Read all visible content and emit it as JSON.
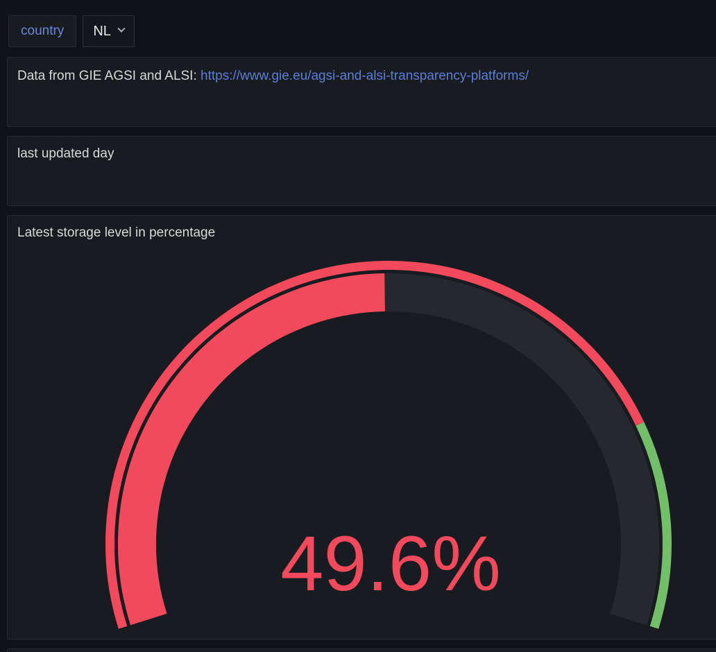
{
  "variables": {
    "label": "country",
    "value": "NL"
  },
  "panels": {
    "info": {
      "text_prefix": "Data from GIE AGSI and ALSI: ",
      "link_text": "https://www.gie.eu/agsi-and-alsi-transparency-platforms/"
    },
    "last_updated": {
      "title": "last updated day"
    },
    "gauge": {
      "title": "Latest storage level in percentage"
    }
  },
  "chart_data": {
    "type": "gauge",
    "title": "Latest storage level in percentage",
    "value": 49.6,
    "unit": "%",
    "display_value": "49.6%",
    "min": 0,
    "max": 100,
    "arc_span_degrees": 215,
    "thresholds": [
      {
        "value": 0,
        "color": "#F2495C",
        "name": "red"
      },
      {
        "value": 80,
        "color": "#73BF69",
        "name": "green"
      }
    ],
    "value_color": "#F2495C",
    "track_color": "#25282d"
  },
  "colors": {
    "page_bg": "#111217",
    "panel_bg": "#181B1F",
    "panel_border": "#25282E",
    "text_primary": "#D8D9DA",
    "variable_label_blue": "#6B87DC",
    "link_blue": "#5B7ED7",
    "value_red": "#F2495C",
    "threshold_green": "#73BF69"
  }
}
